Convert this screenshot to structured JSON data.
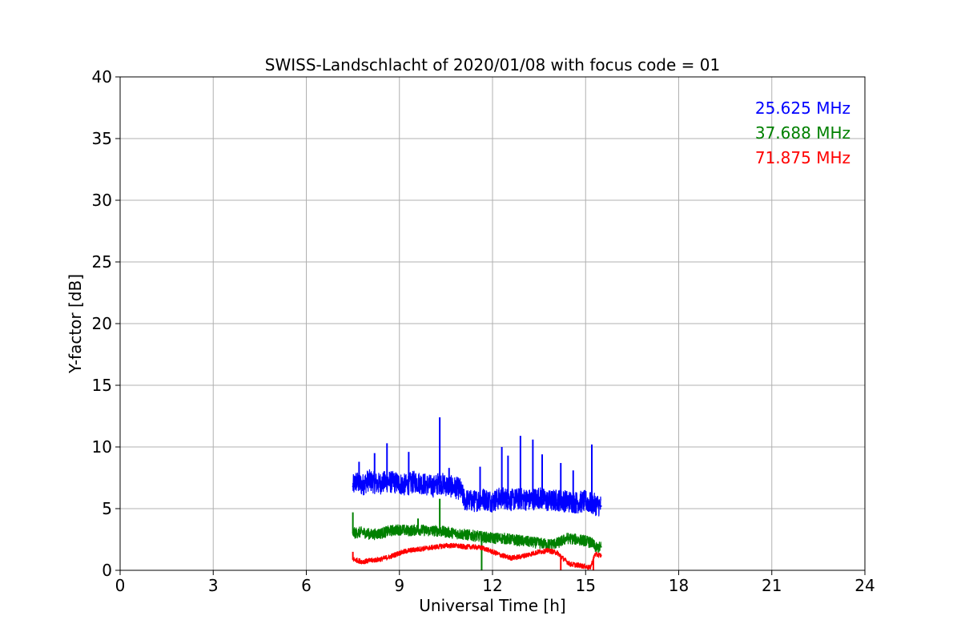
{
  "chart_data": {
    "type": "line",
    "title": "SWISS-Landschlacht of 2020/01/08 with focus code = 01",
    "xlabel": "Universal Time [h]",
    "ylabel": "Y-factor [dB]",
    "xlim": [
      0,
      24
    ],
    "ylim": [
      0,
      40
    ],
    "xticks": [
      0,
      3,
      6,
      9,
      12,
      15,
      18,
      21,
      24
    ],
    "yticks": [
      0,
      5,
      10,
      15,
      20,
      25,
      30,
      35,
      40
    ],
    "grid": true,
    "legend_placement": "top-right",
    "series": [
      {
        "name": "25.625 MHz",
        "color": "#0000ff",
        "x": [
          7.5,
          7.6,
          7.8,
          8.0,
          8.3,
          8.6,
          8.9,
          9.2,
          9.5,
          9.8,
          10.1,
          10.3,
          10.5,
          10.8,
          10.95,
          11.1,
          11.4,
          11.7,
          12.0,
          12.3,
          12.6,
          12.9,
          13.2,
          13.5,
          13.8,
          14.1,
          14.4,
          14.7,
          15.0,
          15.2,
          15.4,
          15.5
        ],
        "y": [
          6.8,
          7.2,
          6.9,
          7.3,
          7.0,
          7.2,
          7.1,
          6.9,
          7.2,
          7.0,
          6.8,
          7.1,
          6.9,
          6.7,
          6.6,
          5.7,
          5.6,
          5.8,
          5.6,
          5.9,
          5.7,
          5.8,
          5.7,
          5.9,
          5.6,
          5.7,
          5.6,
          5.5,
          5.6,
          5.4,
          5.3,
          5.2
        ],
        "band_half_width": 0.9,
        "spikes": [
          [
            7.7,
            8.8
          ],
          [
            8.2,
            9.5
          ],
          [
            8.6,
            10.3
          ],
          [
            9.3,
            9.6
          ],
          [
            10.3,
            12.4
          ],
          [
            10.6,
            8.3
          ],
          [
            11.6,
            8.4
          ],
          [
            12.3,
            10.0
          ],
          [
            12.5,
            9.3
          ],
          [
            12.9,
            10.9
          ],
          [
            13.3,
            10.6
          ],
          [
            13.6,
            9.4
          ],
          [
            14.2,
            8.7
          ],
          [
            14.6,
            8.1
          ],
          [
            15.2,
            10.2
          ]
        ]
      },
      {
        "name": "37.688 MHz",
        "color": "#008000",
        "x": [
          7.5,
          7.8,
          8.1,
          8.4,
          8.7,
          9.0,
          9.3,
          9.6,
          9.9,
          10.2,
          10.5,
          10.8,
          11.1,
          11.4,
          11.7,
          12.0,
          12.3,
          12.6,
          12.9,
          13.2,
          13.5,
          13.8,
          14.1,
          14.4,
          14.7,
          15.0,
          15.2,
          15.35,
          15.5
        ],
        "y": [
          3.0,
          3.1,
          2.9,
          3.0,
          3.2,
          3.3,
          3.2,
          3.3,
          3.2,
          3.2,
          3.1,
          3.0,
          2.9,
          2.8,
          2.7,
          2.6,
          2.6,
          2.5,
          2.4,
          2.3,
          2.2,
          2.1,
          2.2,
          2.6,
          2.5,
          2.4,
          2.2,
          1.8,
          1.9
        ],
        "band_half_width": 0.45,
        "spikes": [
          [
            7.5,
            4.7
          ],
          [
            9.6,
            4.2
          ],
          [
            10.3,
            5.8
          ],
          [
            11.65,
            0.0
          ]
        ]
      },
      {
        "name": "71.875 MHz",
        "color": "#ff0000",
        "x": [
          7.5,
          7.8,
          8.1,
          8.4,
          8.7,
          9.0,
          9.3,
          9.6,
          9.9,
          10.2,
          10.5,
          10.8,
          11.1,
          11.4,
          11.7,
          12.0,
          12.3,
          12.6,
          12.9,
          13.2,
          13.5,
          13.8,
          14.1,
          14.3,
          14.5,
          14.8,
          15.0,
          15.15,
          15.3,
          15.5
        ],
        "y": [
          0.9,
          0.7,
          0.8,
          0.9,
          1.1,
          1.4,
          1.6,
          1.7,
          1.8,
          1.9,
          2.0,
          2.0,
          1.9,
          1.9,
          1.8,
          1.5,
          1.2,
          1.0,
          1.1,
          1.3,
          1.5,
          1.6,
          1.4,
          0.9,
          0.5,
          0.4,
          0.3,
          0.2,
          1.3,
          1.2
        ],
        "band_half_width": 0.2,
        "spikes": [
          [
            7.5,
            1.5
          ],
          [
            14.2,
            0.0
          ],
          [
            15.25,
            0.0
          ]
        ]
      }
    ]
  }
}
